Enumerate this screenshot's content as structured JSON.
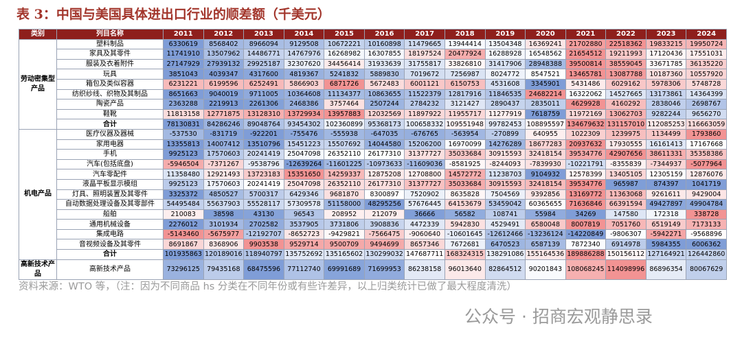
{
  "title": "表 3：中国与美国具体进出口行业的顺差额（千美元）",
  "table": {
    "header": [
      "类别",
      "列目名称",
      "2011",
      "2012",
      "2013",
      "2014",
      "2015",
      "2016",
      "2017",
      "2018",
      "2019",
      "2020",
      "2021",
      "2022",
      "2023",
      "2024"
    ],
    "groups": [
      {
        "category": "劳动密集型产品",
        "rows": [
          {
            "name": "塑料制品",
            "values": [
              6330619,
              8568402,
              8966094,
              9129508,
              10672221,
              10160898,
              11479665,
              13944414,
              13504348,
              16369241,
              21702880,
              22518362,
              19833215,
              19950724
            ]
          },
          {
            "name": "家具及其零件",
            "values": [
              11741910,
              13507962,
              14486771,
              14767976,
              16268982,
              16307855,
              18197524,
              20477924,
              16288928,
              16548562,
              21654512,
              19211993,
              17120436,
              17551031
            ]
          },
          {
            "name": "服装及衣着附件",
            "values": [
              27147929,
              27939132,
              29925187,
              32307620,
              34456414,
              31933639,
              31755817,
              33826810,
              31417906,
              28948388,
              39500814,
              38559045,
              33671785,
              36135220
            ]
          },
          {
            "name": "玩具",
            "values": [
              3851043,
              4039347,
              4317600,
              4819367,
              5241832,
              5889830,
              7019672,
              7256987,
              8024772,
              8547521,
              13465781,
              13087788,
              10187360,
              10557920
            ]
          },
          {
            "name": "箱包及类似容器",
            "values": [
              6231221,
              6199596,
              6252491,
              5866903,
              6871726,
              5672483,
              6001121,
              6150753,
              4531608,
              3345901,
              5431486,
              6029162,
              5978306,
              5748728
            ]
          },
          {
            "name": "纺织纱线、织物及其制品",
            "values": [
              8651663,
              9040019,
              9711005,
              10364608,
              11134377,
              10863655,
              11522379,
              12817916,
              11846535,
              24682214,
              16322062,
              14527665,
              13173861,
              14364399
            ]
          },
          {
            "name": "陶瓷产品",
            "values": [
              2363288,
              2219913,
              2261306,
              2468386,
              3757464,
              2507244,
              2784232,
              3121427,
              2890437,
              2835011,
              4629928,
              4160292,
              2838046,
              2698767
            ]
          },
          {
            "name": "鞋靴",
            "values": [
              11813158,
              12771875,
              13128310,
              13729934,
              13957883,
              12032569,
              11897922,
              11955717,
              11277919,
              7618759,
              11972169,
              13062703,
              9282244,
              9656270
            ]
          },
          {
            "name": "合计",
            "values": [
              78130831,
              84286246,
              89048764,
              93454302,
              102360899,
              95368173,
              100658332,
              109551948,
              99782453,
              108895597,
              134679632,
              131157010,
              112085253,
              116663059
            ]
          }
        ]
      },
      {
        "category": "机电产品",
        "rows": [
          {
            "name": "医疗仪器及器械",
            "values": [
              -537530,
              -831719,
              -922201,
              -755476,
              -555938,
              -647035,
              -676765,
              -563954,
              -270899,
              640955,
              1022309,
              1239975,
              1134499,
              1793860
            ]
          },
          {
            "name": "家用电器",
            "values": [
              13355813,
              14007412,
              13510796,
              15451223,
              15507692,
              14044580,
              15206200,
              16970099,
              14276289,
              18677283,
              20937632,
              17930555,
              16161413,
              17167668
            ]
          },
          {
            "name": "手机",
            "values": [
              9925123,
              17570603,
              20241419,
              25047098,
              26352110,
              26177310,
              31377727,
              35033684,
              30915593,
              32418154,
              39534776,
              42907656,
              38611331,
              35358386
            ]
          },
          {
            "name": "汽车(包括底盘)",
            "values": [
              -5946504,
              -7371267,
              -9538796,
              -12639264,
              -11601225,
              -10973633,
              -11609036,
              -8581925,
              -8244093,
              -7839930,
              -10221791,
              -8355839,
              -7344937,
              -5077964
            ]
          },
          {
            "name": "汽车零配件",
            "values": [
              11358480,
              12921493,
              13723183,
              15351650,
              14259337,
              12875208,
              12708800,
              14572772,
              11238703,
              9104932,
              12578399,
              13405105,
              12305159,
              12876076
            ]
          },
          {
            "name": "液晶平板显示模组",
            "values": [
              9925123,
              17570603,
              20241419,
              25047098,
              26352110,
              26177310,
              31377727,
              35033684,
              30915593,
              32418154,
              39534776,
              965987,
              874397,
              1041719
            ]
          },
          {
            "name": "灯具、照明装置及其零件",
            "values": [
              3325372,
              4850527,
              5700317,
              6429346,
              9681870,
              8300897,
              7520902,
              8635828,
              7504569,
              9392856,
              13169772,
              11363068,
              9261611,
              9429004
            ]
          },
          {
            "name": "自动数据处理设备及其零部件",
            "values": [
              54495484,
              55637903,
              55528117,
              57309578,
              51158000,
              48295256,
              57676445,
              64153679,
              53459042,
              60365655,
              71636846,
              66391594,
              49427897,
              49904784
            ]
          },
          {
            "name": "船舶",
            "values": [
              210083,
              38598,
              43130,
              96543,
              208952,
              212079,
              36666,
              56582,
              108741,
              55984,
              34269,
              147580,
              172318,
              338728
            ]
          },
          {
            "name": "通用机械设备",
            "values": [
              2276012,
              3101934,
              2702582,
              3537905,
              3731806,
              3908836,
              4472339,
              5942830,
              4529491,
              6580048,
              8007819,
              7051760,
              6519149,
              7173133
            ]
          },
          {
            "name": "集成电路",
            "values": [
              -5143460,
              -5675977,
              -12192707,
              -8652723,
              -9429821,
              -7566475,
              -9060640,
              -10601645,
              -12612466,
              -13236124,
              -14220849,
              -9806307,
              -5942271,
              -9568896
            ]
          },
          {
            "name": "音视频设备及其零件",
            "values": [
              8691867,
              8368906,
              9903538,
              9529714,
              9500709,
              9494699,
              8657346,
              7672681,
              6470523,
              6587139,
              7872340,
              6914978,
              5984355,
              6006362
            ]
          },
          {
            "name": "合计",
            "values": [
              101935863,
              120189016,
              118940797,
              135752692,
              135165602,
              130299032,
              147687711,
              168324315,
              138291086,
              155164536,
              189886288,
              150156112,
              127164921,
              126442860
            ]
          }
        ]
      },
      {
        "category": "高新技术产品",
        "rows": [
          {
            "name": "高新技术产品",
            "values": [
              73296125,
              79435168,
              68475596,
              77112740,
              69991689,
              71699953,
              86238158,
              96013640,
              82864512,
              90201843,
              108068245,
              114098996,
              86896354,
              80067629
            ]
          }
        ]
      }
    ]
  },
  "source": "资料来源：WTO 等，（注：因为不同商品 hs 分类在不同年份或有些许差异，以上归类统计已做了最大程度清洗）",
  "watermark": "公众号 · 招商宏观静思录"
}
